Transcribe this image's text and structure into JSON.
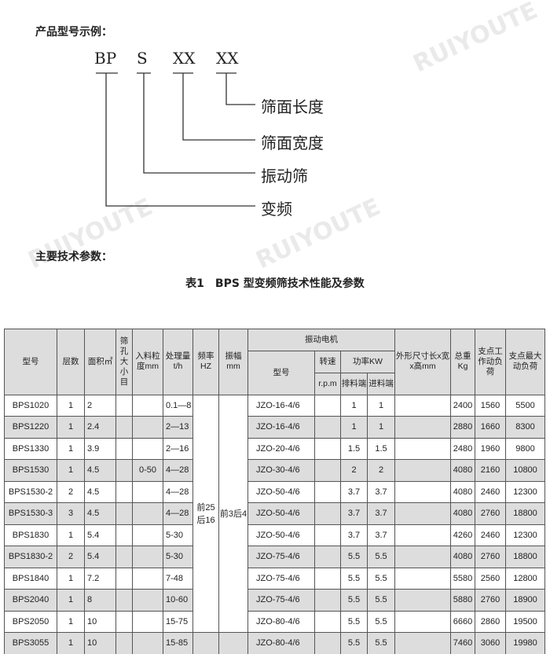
{
  "example": {
    "heading": "产品型号示例：",
    "codes": [
      "BP",
      "S",
      "XX",
      "XX"
    ],
    "labels": [
      "筛面长度",
      "筛面宽度",
      "振动筛",
      "变频"
    ]
  },
  "params_heading": "主要技术参数：",
  "table_title": "表1　BPS 型变频筛技术性能及参数",
  "watermark": "瑞友特矿山设备 RUIYOUTE MINE EQUIPMENT",
  "headers": {
    "model": "型号",
    "layers": "层数",
    "area": "面积㎡",
    "mesh": "筛孔大小目",
    "feed": "入料粒度mm",
    "capacity": "处理量t/h",
    "freq": "频率HZ",
    "amp": "振幅mm",
    "motor": "振动电机",
    "motor_model": "型号",
    "speed": "转速",
    "speed_unit": "r.p.m",
    "power": "功率KW",
    "power_out": "排料端",
    "power_in": "进料端",
    "dims": "外形尺寸长x宽x高mm",
    "weight": "总重Kg",
    "work_load": "支点工作动负荷",
    "max_load": "支点最大动负荷"
  },
  "freq_value": "前25后16",
  "amp_value": "前3后4",
  "rows": [
    {
      "model": "BPS1020",
      "layers": "1",
      "area": "2",
      "feed": "",
      "cap": "0.1—8",
      "motor": "JZO-16-4/6",
      "out": "1",
      "in": "1",
      "weight": "2400",
      "work": "1560",
      "max": "5500"
    },
    {
      "model": "BPS1220",
      "layers": "1",
      "area": "2.4",
      "feed": "",
      "cap": "2—13",
      "motor": "JZO-16-4/6",
      "out": "1",
      "in": "1",
      "weight": "2880",
      "work": "1660",
      "max": "8300"
    },
    {
      "model": "BPS1330",
      "layers": "1",
      "area": "3.9",
      "feed": "",
      "cap": "2—16",
      "motor": "JZO-20-4/6",
      "out": "1.5",
      "in": "1.5",
      "weight": "2480",
      "work": "1960",
      "max": "9800"
    },
    {
      "model": "BPS1530",
      "layers": "1",
      "area": "4.5",
      "feed": "0-50",
      "cap": "4—28",
      "motor": "JZO-30-4/6",
      "out": "2",
      "in": "2",
      "weight": "4080",
      "work": "2160",
      "max": "10800"
    },
    {
      "model": "BPS1530-2",
      "layers": "2",
      "area": "4.5",
      "feed": "",
      "cap": "4—28",
      "motor": "JZO-50-4/6",
      "out": "3.7",
      "in": "3.7",
      "weight": "4080",
      "work": "2460",
      "max": "12300"
    },
    {
      "model": "BPS1530-3",
      "layers": "3",
      "area": "4.5",
      "feed": "",
      "cap": "4—28",
      "motor": "JZO-50-4/6",
      "out": "3.7",
      "in": "3.7",
      "weight": "4080",
      "work": "2760",
      "max": "18800"
    },
    {
      "model": "BPS1830",
      "layers": "1",
      "area": "5.4",
      "feed": "",
      "cap": "5-30",
      "motor": "JZO-50-4/6",
      "out": "3.7",
      "in": "3.7",
      "weight": "4260",
      "work": "2460",
      "max": "12300"
    },
    {
      "model": "BPS1830-2",
      "layers": "2",
      "area": "5.4",
      "feed": "",
      "cap": "5-30",
      "motor": "JZO-75-4/6",
      "out": "5.5",
      "in": "5.5",
      "weight": "4080",
      "work": "2760",
      "max": "18800"
    },
    {
      "model": "BPS1840",
      "layers": "1",
      "area": "7.2",
      "feed": "",
      "cap": "7-48",
      "motor": "JZO-75-4/6",
      "out": "5.5",
      "in": "5.5",
      "weight": "5580",
      "work": "2560",
      "max": "12800"
    },
    {
      "model": "BPS2040",
      "layers": "1",
      "area": "8",
      "feed": "",
      "cap": "10-60",
      "motor": "JZO-75-4/6",
      "out": "5.5",
      "in": "5.5",
      "weight": "5880",
      "work": "2760",
      "max": "18900"
    },
    {
      "model": "BPS2050",
      "layers": "1",
      "area": "10",
      "feed": "",
      "cap": "15-75",
      "motor": "JZO-80-4/6",
      "out": "5.5",
      "in": "5.5",
      "weight": "6660",
      "work": "2860",
      "max": "19500"
    },
    {
      "model": "BPS3055",
      "layers": "1",
      "area": "10",
      "feed": "",
      "cap": "15-85",
      "motor": "JZO-80-4/6",
      "out": "5.5",
      "in": "5.5",
      "weight": "7460",
      "work": "3060",
      "max": "19980"
    }
  ]
}
